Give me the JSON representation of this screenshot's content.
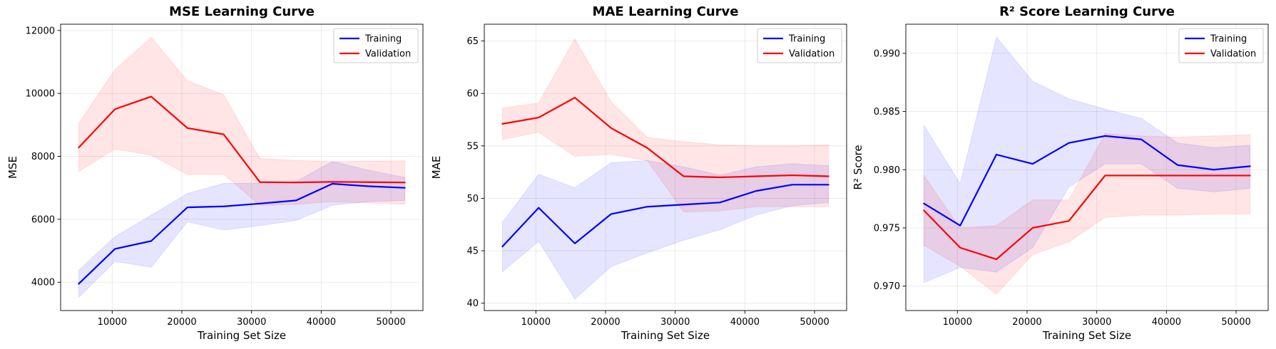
{
  "chart_data": [
    {
      "type": "line",
      "title": "MSE Learning Curve",
      "xlabel": "Training Set Size",
      "ylabel": "MSE",
      "xlim": [
        2600,
        54600
      ],
      "ylim": [
        3100,
        12200
      ],
      "xticks": [
        10000,
        20000,
        30000,
        40000,
        50000
      ],
      "xtick_labels": [
        "10000",
        "20000",
        "30000",
        "40000",
        "50000"
      ],
      "yticks": [
        4000,
        6000,
        8000,
        10000,
        12000
      ],
      "ytick_labels": [
        "4000",
        "6000",
        "8000",
        "10000",
        "12000"
      ],
      "grid": true,
      "legend_position": "top-right",
      "x": [
        5200,
        10400,
        15600,
        20800,
        26000,
        31200,
        36400,
        41600,
        46800,
        52000
      ],
      "series": [
        {
          "name": "Training",
          "color": "#0000ff",
          "values": [
            3950,
            5060,
            5310,
            6380,
            6410,
            6500,
            6600,
            7130,
            7050,
            7000
          ],
          "lower": [
            3520,
            4660,
            4480,
            5920,
            5660,
            5800,
            5960,
            6450,
            6560,
            6600
          ],
          "upper": [
            4380,
            5450,
            6130,
            6820,
            7140,
            7150,
            7200,
            7840,
            7560,
            7330
          ]
        },
        {
          "name": "Validation",
          "color": "#ff0000",
          "values": [
            8280,
            9500,
            9900,
            8900,
            8700,
            7180,
            7170,
            7190,
            7180,
            7170
          ],
          "lower": [
            7520,
            8230,
            8040,
            7420,
            7430,
            6450,
            6470,
            6560,
            6520,
            6480
          ],
          "upper": [
            9050,
            10760,
            11780,
            10400,
            9960,
            7930,
            7870,
            7830,
            7850,
            7860
          ]
        }
      ]
    },
    {
      "type": "line",
      "title": "MAE Learning Curve",
      "xlabel": "Training Set Size",
      "ylabel": "MAE",
      "xlim": [
        2600,
        54600
      ],
      "ylim": [
        39.3,
        66.6
      ],
      "xticks": [
        10000,
        20000,
        30000,
        40000,
        50000
      ],
      "xtick_labels": [
        "10000",
        "20000",
        "30000",
        "40000",
        "50000"
      ],
      "yticks": [
        40,
        45,
        50,
        55,
        60,
        65
      ],
      "ytick_labels": [
        "40",
        "45",
        "50",
        "55",
        "60",
        "65"
      ],
      "grid": true,
      "legend_position": "top-right",
      "x": [
        5200,
        10400,
        15600,
        20800,
        26000,
        31200,
        36400,
        41600,
        46800,
        52000
      ],
      "series": [
        {
          "name": "Training",
          "color": "#0000ff",
          "values": [
            45.4,
            49.1,
            45.7,
            48.5,
            49.2,
            49.4,
            49.6,
            50.7,
            51.3,
            51.3
          ],
          "lower": [
            43.0,
            45.9,
            40.4,
            43.5,
            44.8,
            46.0,
            47.0,
            48.4,
            49.3,
            49.6
          ],
          "upper": [
            47.7,
            52.3,
            51.0,
            53.4,
            53.6,
            53.0,
            52.2,
            53.0,
            53.3,
            53.1
          ]
        },
        {
          "name": "Validation",
          "color": "#ff0000",
          "values": [
            57.1,
            57.7,
            59.6,
            56.7,
            54.8,
            52.1,
            52.0,
            52.1,
            52.2,
            52.1
          ],
          "lower": [
            55.6,
            56.3,
            54.0,
            54.2,
            53.6,
            48.7,
            48.8,
            49.2,
            49.2,
            49.2
          ],
          "upper": [
            58.6,
            59.1,
            65.2,
            59.2,
            55.8,
            55.4,
            55.1,
            55.0,
            55.0,
            55.1
          ]
        }
      ]
    },
    {
      "type": "line",
      "title": "R² Score Learning Curve",
      "xlabel": "Training Set Size",
      "ylabel": "R² Score",
      "xlim": [
        2600,
        54600
      ],
      "ylim": [
        0.9679,
        0.9925
      ],
      "xticks": [
        10000,
        20000,
        30000,
        40000,
        50000
      ],
      "xtick_labels": [
        "10000",
        "20000",
        "30000",
        "40000",
        "50000"
      ],
      "yticks": [
        0.97,
        0.975,
        0.98,
        0.985,
        0.99
      ],
      "ytick_labels": [
        "0.970",
        "0.975",
        "0.980",
        "0.985",
        "0.990"
      ],
      "grid": true,
      "legend_position": "top-right",
      "x": [
        5200,
        10400,
        15600,
        20800,
        26000,
        31200,
        36400,
        41600,
        46800,
        52000
      ],
      "series": [
        {
          "name": "Training",
          "color": "#0000ff",
          "values": [
            0.9771,
            0.9752,
            0.9813,
            0.9805,
            0.9823,
            0.9829,
            0.9826,
            0.9804,
            0.98,
            0.9803
          ],
          "lower": [
            0.9703,
            0.9716,
            0.9712,
            0.9733,
            0.9785,
            0.9805,
            0.9805,
            0.9784,
            0.9781,
            0.9784
          ],
          "upper": [
            0.9838,
            0.9788,
            0.9914,
            0.9876,
            0.9861,
            0.9852,
            0.9844,
            0.9823,
            0.9819,
            0.9821
          ]
        },
        {
          "name": "Validation",
          "color": "#ff0000",
          "values": [
            0.9765,
            0.9733,
            0.9723,
            0.975,
            0.9756,
            0.9795,
            0.9795,
            0.9795,
            0.9795,
            0.9795
          ],
          "lower": [
            0.9735,
            0.9717,
            0.9693,
            0.9727,
            0.9738,
            0.9759,
            0.9761,
            0.9761,
            0.9762,
            0.9762
          ],
          "upper": [
            0.9795,
            0.975,
            0.9752,
            0.9774,
            0.9774,
            0.9831,
            0.9829,
            0.9828,
            0.9829,
            0.983
          ]
        }
      ]
    }
  ]
}
